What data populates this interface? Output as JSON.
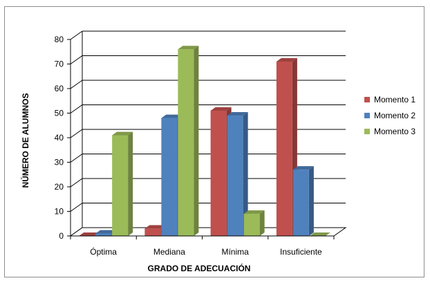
{
  "chart_data": {
    "type": "bar",
    "title": "",
    "xlabel": "GRADO DE ADECUACIÓN",
    "ylabel": "NÚMERO DE ALUMNOS",
    "categories": [
      "Óptima",
      "Mediana",
      "Mínima",
      "Insuficiente"
    ],
    "series": [
      {
        "name": "Momento 1",
        "color": "#c0504d",
        "values": [
          0,
          3,
          51,
          71
        ]
      },
      {
        "name": "Momento 2",
        "color": "#4f81bd",
        "values": [
          1,
          48,
          49,
          27
        ]
      },
      {
        "name": "Momento 3",
        "color": "#9bbb59",
        "values": [
          41,
          76,
          9,
          0
        ]
      }
    ],
    "ylim": [
      0,
      80
    ],
    "yticks": [
      "0",
      "10",
      "20",
      "30",
      "40",
      "50",
      "60",
      "70",
      "80"
    ],
    "grid": true,
    "style": "3d-clustered-column",
    "legend": "right"
  }
}
